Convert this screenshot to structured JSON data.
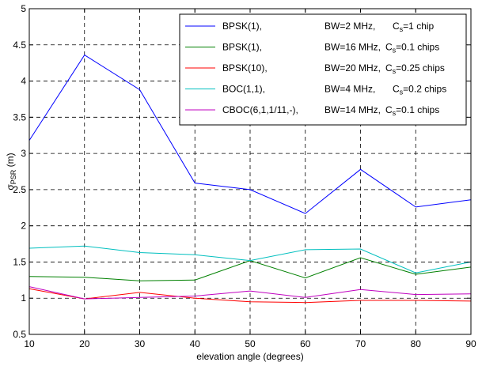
{
  "chart_data": {
    "type": "line",
    "xlabel": "elevation angle (degrees)",
    "ylabel": {
      "main": "σ",
      "sub": "PSR",
      "unit": " (m)"
    },
    "xlim": [
      10,
      90
    ],
    "ylim": [
      0.5,
      5
    ],
    "grid": true,
    "legend_position": "top-right",
    "x_ticks": [
      "10",
      "20",
      "30",
      "40",
      "50",
      "60",
      "70",
      "80",
      "90"
    ],
    "y_ticks": [
      "0.5",
      "1",
      "1.5",
      "2",
      "2.5",
      "3",
      "3.5",
      "4",
      "4.5",
      "5"
    ],
    "x": [
      10,
      20,
      30,
      40,
      50,
      60,
      70,
      80,
      90
    ],
    "series": [
      {
        "legend": {
          "sig": "BPSK(1),",
          "bw": "BW=2 MHz,",
          "cpre": "C",
          "csub": "s",
          "cpost": "=1 chip"
        },
        "color": "#0000ff",
        "values": [
          3.18,
          4.36,
          3.88,
          2.59,
          2.5,
          2.17,
          2.78,
          2.26,
          2.36
        ]
      },
      {
        "legend": {
          "sig": "BPSK(1),",
          "bw": "BW=16 MHz,",
          "cpre": "C",
          "csub": "s",
          "cpost": "=0.1 chips"
        },
        "color": "#008000",
        "values": [
          1.3,
          1.29,
          1.24,
          1.25,
          1.52,
          1.28,
          1.56,
          1.33,
          1.43
        ]
      },
      {
        "legend": {
          "sig": "BPSK(10),",
          "bw": "BW=20 MHz,",
          "cpre": "C",
          "csub": "s",
          "cpost": "=0.25 chips"
        },
        "color": "#ff0000",
        "values": [
          1.13,
          0.99,
          1.08,
          1.0,
          0.95,
          0.94,
          0.97,
          0.97,
          0.96
        ]
      },
      {
        "legend": {
          "sig": "BOC(1,1),",
          "bw": "BW=4 MHz,",
          "cpre": "C",
          "csub": "s",
          "cpost": "=0.2 chips"
        },
        "color": "#00bfbf",
        "values": [
          1.69,
          1.72,
          1.63,
          1.6,
          1.52,
          1.67,
          1.68,
          1.35,
          1.5
        ]
      },
      {
        "legend": {
          "sig": "CBOC(6,1,1/11,-),",
          "bw": "BW=14 MHz,",
          "cpre": "C",
          "csub": "s",
          "cpost": "=0.1 chips"
        },
        "color": "#bf00bf",
        "values": [
          1.16,
          0.99,
          1.01,
          1.03,
          1.1,
          1.01,
          1.12,
          1.05,
          1.06
        ]
      }
    ]
  }
}
